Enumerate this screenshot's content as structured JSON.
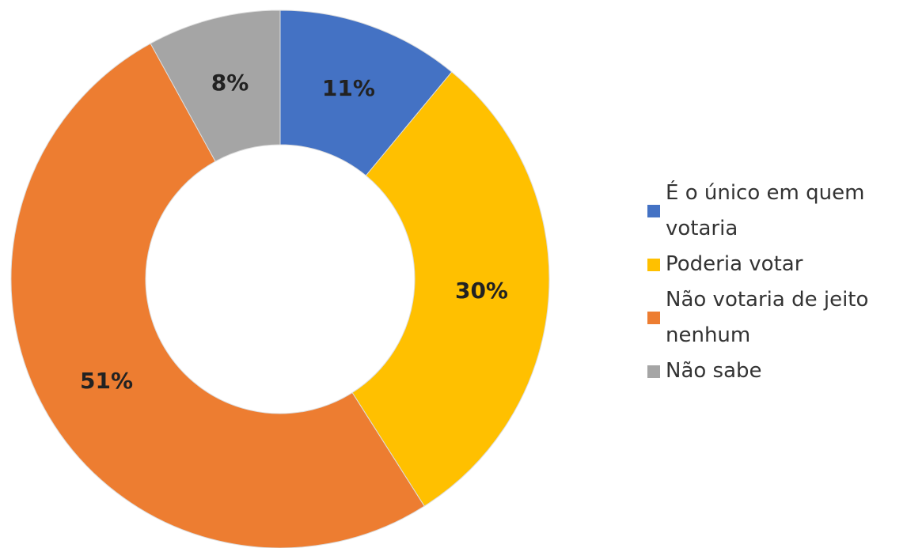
{
  "chart_data": {
    "type": "donut",
    "categories": [
      "É o único em quem votaria",
      "Poderia votar",
      "Não votaria de jeito nenhum",
      "Não sabe"
    ],
    "values": [
      11,
      30,
      51,
      8
    ],
    "value_labels": [
      "11%",
      "30%",
      "51%",
      "8%"
    ],
    "colors": [
      "#4472c4",
      "#ffc000",
      "#ed7d31",
      "#a5a5a5"
    ],
    "legend": "right"
  }
}
